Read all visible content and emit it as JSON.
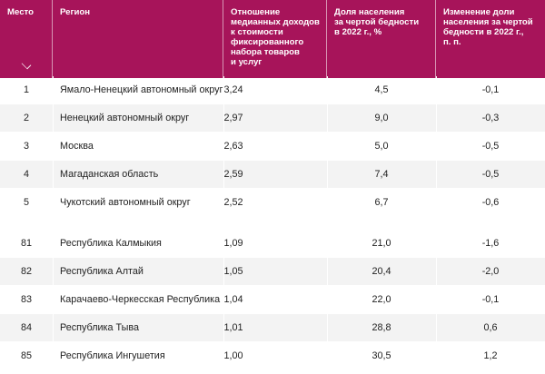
{
  "header": {
    "col_rank": "Место",
    "col_region": "Регион",
    "col_ratio": [
      "Отношение",
      "медианных доходов",
      "к стоимости",
      "фиксированного",
      "набора товаров",
      "и услуг"
    ],
    "col_poverty": [
      "Доля населения",
      "за чертой бедности",
      "в 2022 г., %"
    ],
    "col_change": [
      "Изменение доли",
      "населения за чертой",
      "бедности в 2022 г.,",
      "п. п."
    ]
  },
  "rows_top": [
    {
      "rank": "1",
      "region": "Ямало-Ненецкий автономный округ",
      "ratio": "3,24",
      "poverty": "4,5",
      "change": "-0,1"
    },
    {
      "rank": "2",
      "region": "Ненецкий автономный округ",
      "ratio": "2,97",
      "poverty": "9,0",
      "change": "-0,3"
    },
    {
      "rank": "3",
      "region": "Москва",
      "ratio": "2,63",
      "poverty": "5,0",
      "change": "-0,5"
    },
    {
      "rank": "4",
      "region": "Магаданская область",
      "ratio": "2,59",
      "poverty": "7,4",
      "change": "-0,5"
    },
    {
      "rank": "5",
      "region": "Чукотский автономный округ",
      "ratio": "2,52",
      "poverty": "6,7",
      "change": "-0,6"
    }
  ],
  "rows_bottom": [
    {
      "rank": "81",
      "region": "Республика Калмыкия",
      "ratio": "1,09",
      "poverty": "21,0",
      "change": "-1,6"
    },
    {
      "rank": "82",
      "region": "Республика Алтай",
      "ratio": "1,05",
      "poverty": "20,4",
      "change": "-2,0"
    },
    {
      "rank": "83",
      "region": "Карачаево-Черкесская Республика",
      "ratio": "1,04",
      "poverty": "22,0",
      "change": "-0,1"
    },
    {
      "rank": "84",
      "region": "Республика Тыва",
      "ratio": "1,01",
      "poverty": "28,8",
      "change": "0,6"
    },
    {
      "rank": "85",
      "region": "Республика Ингушетия",
      "ratio": "1,00",
      "poverty": "30,5",
      "change": "1,2"
    }
  ],
  "colors": {
    "header_bg": "#a7145a",
    "row_shade": "#f3f3f3"
  },
  "icons": {
    "sort": "chevron-down-icon"
  }
}
